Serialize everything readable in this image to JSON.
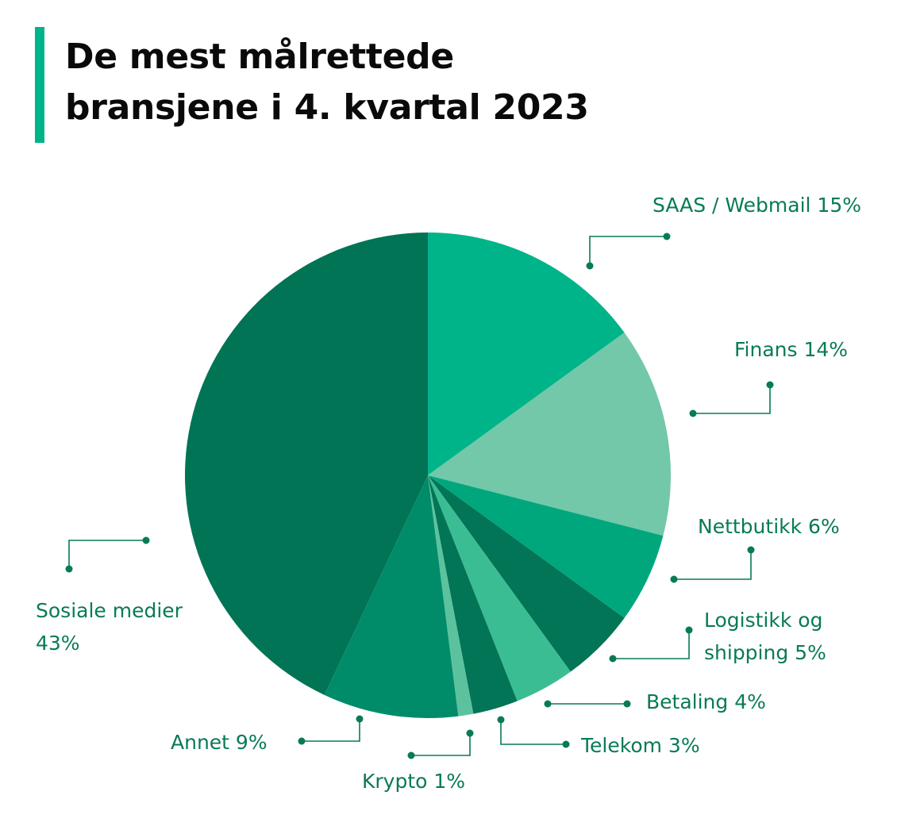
{
  "title": {
    "line1": "De mest målrettede",
    "line2": "bransjene i 4. kvartal 2023"
  },
  "colors": {
    "accent": "#00b489",
    "label": "#087a58",
    "title": "#0a0a0a"
  },
  "chart_data": {
    "type": "pie",
    "start_angle_deg": 0,
    "direction": "clockwise",
    "legend": "none",
    "slices": [
      {
        "label": "SAAS / Webmail",
        "value": 15,
        "display": "SAAS / Webmail 15%",
        "color": "#00b48a"
      },
      {
        "label": "Finans",
        "value": 14,
        "display": "Finans 14%",
        "color": "#72c8a8"
      },
      {
        "label": "Nettbutikk",
        "value": 6,
        "display": "Nettbutikk 6%",
        "color": "#00a77d"
      },
      {
        "label": "Logistikk og shipping",
        "value": 5,
        "display": "Logistikk og shipping 5%",
        "display_lines": [
          "Logistikk og",
          "shipping 5%"
        ],
        "color": "#017556"
      },
      {
        "label": "Betaling",
        "value": 4,
        "display": "Betaling 4%",
        "color": "#3bbd94"
      },
      {
        "label": "Telekom",
        "value": 3,
        "display": "Telekom 3%",
        "color": "#017556"
      },
      {
        "label": "Krypto",
        "value": 1,
        "display": "Krypto 1%",
        "color": "#5cc29e"
      },
      {
        "label": "Annet",
        "value": 9,
        "display": "Annet 9%",
        "color": "#008c69"
      },
      {
        "label": "Sosiale medier",
        "value": 43,
        "display": "Sosiale medier 43%",
        "display_lines": [
          "Sosiale medier",
          "43%"
        ],
        "color": "#007455"
      }
    ]
  }
}
